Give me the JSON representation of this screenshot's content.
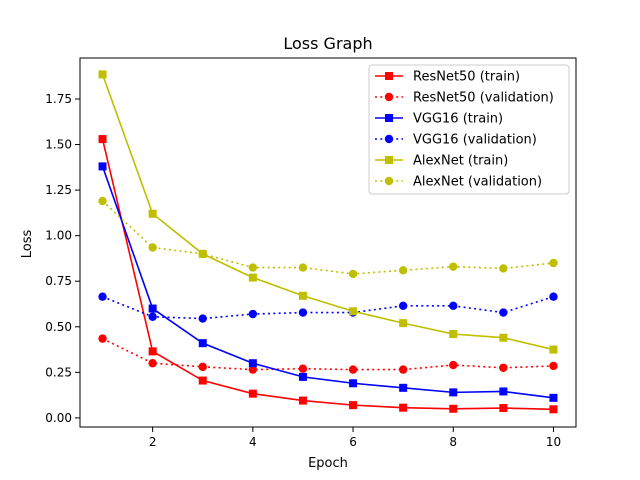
{
  "chart_data": {
    "type": "line",
    "title": "Loss Graph",
    "xlabel": "Epoch",
    "ylabel": "Loss",
    "xlim": [
      0.55,
      10.45
    ],
    "ylim": [
      -0.05,
      1.975
    ],
    "xticks": [
      2,
      4,
      6,
      8,
      10
    ],
    "xtick_labels": [
      "2",
      "4",
      "6",
      "8",
      "10"
    ],
    "yticks": [
      0.0,
      0.25,
      0.5,
      0.75,
      1.0,
      1.25,
      1.5,
      1.75
    ],
    "ytick_labels": [
      "0.00",
      "0.25",
      "0.50",
      "0.75",
      "1.00",
      "1.25",
      "1.50",
      "1.75"
    ],
    "legend_position": "top-right",
    "grid": false,
    "x": [
      1,
      2,
      3,
      4,
      5,
      6,
      7,
      8,
      9,
      10
    ],
    "series": [
      {
        "name": "ResNet50 (train)",
        "color": "#ff0000",
        "marker": "square",
        "linestyle": "solid",
        "values": [
          1.53,
          0.365,
          0.205,
          0.133,
          0.095,
          0.07,
          0.056,
          0.05,
          0.054,
          0.047
        ]
      },
      {
        "name": "ResNet50 (validation)",
        "color": "#ff0000",
        "marker": "circle",
        "linestyle": "dotted",
        "values": [
          0.435,
          0.3,
          0.28,
          0.265,
          0.27,
          0.265,
          0.265,
          0.29,
          0.275,
          0.285
        ]
      },
      {
        "name": "VGG16 (train)",
        "color": "#0000ff",
        "marker": "square",
        "linestyle": "solid",
        "values": [
          1.38,
          0.6,
          0.41,
          0.3,
          0.225,
          0.19,
          0.165,
          0.14,
          0.145,
          0.11
        ]
      },
      {
        "name": "VGG16 (validation)",
        "color": "#0000ff",
        "marker": "circle",
        "linestyle": "dotted",
        "values": [
          0.665,
          0.555,
          0.545,
          0.57,
          0.578,
          0.578,
          0.615,
          0.615,
          0.578,
          0.665
        ]
      },
      {
        "name": "AlexNet (train)",
        "color": "#bfbf00",
        "marker": "square",
        "linestyle": "solid",
        "values": [
          1.885,
          1.12,
          0.9,
          0.77,
          0.67,
          0.585,
          0.52,
          0.46,
          0.44,
          0.375
        ]
      },
      {
        "name": "AlexNet (validation)",
        "color": "#bfbf00",
        "marker": "circle",
        "linestyle": "dotted",
        "values": [
          1.19,
          0.935,
          0.9,
          0.825,
          0.825,
          0.79,
          0.81,
          0.83,
          0.82,
          0.85
        ]
      }
    ]
  }
}
